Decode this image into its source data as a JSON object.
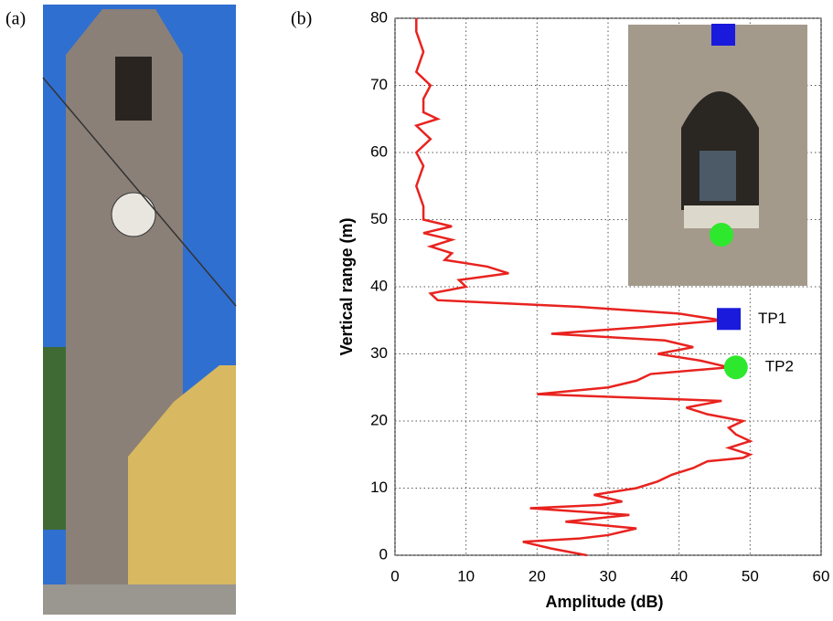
{
  "panel_labels": [
    "(a)",
    "(b)"
  ],
  "chart_data": {
    "type": "line",
    "x_label": "Amplitude (dB)",
    "y_label": "Vertical range (m)",
    "color": "#e8231f",
    "x": [
      27,
      22,
      18,
      26,
      30,
      34,
      24,
      33,
      19,
      29,
      32,
      28,
      34,
      37,
      39,
      42,
      44,
      49,
      50,
      47,
      50,
      48,
      47,
      49,
      44,
      41,
      46,
      20,
      30,
      34,
      36,
      47,
      43,
      37,
      42,
      38,
      22,
      35,
      46,
      40,
      26,
      6,
      5,
      10,
      9,
      16,
      13,
      7,
      8,
      5,
      8,
      4,
      8,
      4,
      4,
      3,
      4,
      3,
      5,
      3,
      6,
      4,
      4,
      5,
      3,
      4,
      3,
      3
    ],
    "y": [
      0,
      1,
      2,
      2.5,
      3,
      4,
      5,
      6,
      7,
      7.5,
      8,
      9,
      10,
      11,
      12,
      13,
      14,
      14.5,
      15,
      16,
      17,
      18,
      19,
      20,
      21,
      22,
      23,
      24,
      25,
      26,
      27,
      28,
      29,
      30,
      31,
      32,
      33,
      34,
      35,
      36,
      37,
      38,
      39,
      40,
      41,
      42,
      43,
      44,
      45,
      46,
      47,
      48,
      49,
      50,
      52,
      55,
      58,
      60,
      62,
      64,
      65,
      66,
      68,
      70,
      72,
      75,
      78,
      80
    ],
    "xlim": [
      0,
      60
    ],
    "ylim": [
      0,
      80
    ],
    "xticks": [
      0,
      10,
      20,
      30,
      40,
      50,
      60
    ],
    "yticks": [
      0,
      10,
      20,
      30,
      40,
      50,
      60,
      70,
      80
    ],
    "grid": true,
    "annotations": [
      {
        "label": "TP1",
        "x": 47,
        "y": 35.2,
        "color": "#1a1adc"
      },
      {
        "label": "TP2",
        "x": 48,
        "y": 28,
        "color": "#2ee82e"
      }
    ]
  }
}
